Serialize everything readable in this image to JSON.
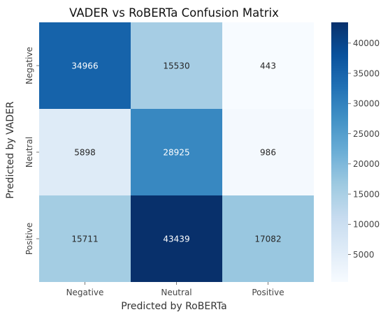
{
  "chart_data": {
    "type": "heatmap",
    "title": "VADER vs RoBERTa Confusion Matrix",
    "xlabel": "Predicted by RoBERTa",
    "ylabel": "Predicted by VADER",
    "x_categories": [
      "Negative",
      "Neutral",
      "Positive"
    ],
    "y_categories": [
      "Negative",
      "Neutral",
      "Positive"
    ],
    "values": [
      [
        34966,
        15530,
        443
      ],
      [
        5898,
        28925,
        986
      ],
      [
        15711,
        43439,
        17082
      ]
    ],
    "colormap": "Blues",
    "vmin": 443,
    "vmax": 43439,
    "colorbar_ticks": [
      5000,
      10000,
      15000,
      20000,
      25000,
      30000,
      35000,
      40000
    ],
    "grid": false
  }
}
